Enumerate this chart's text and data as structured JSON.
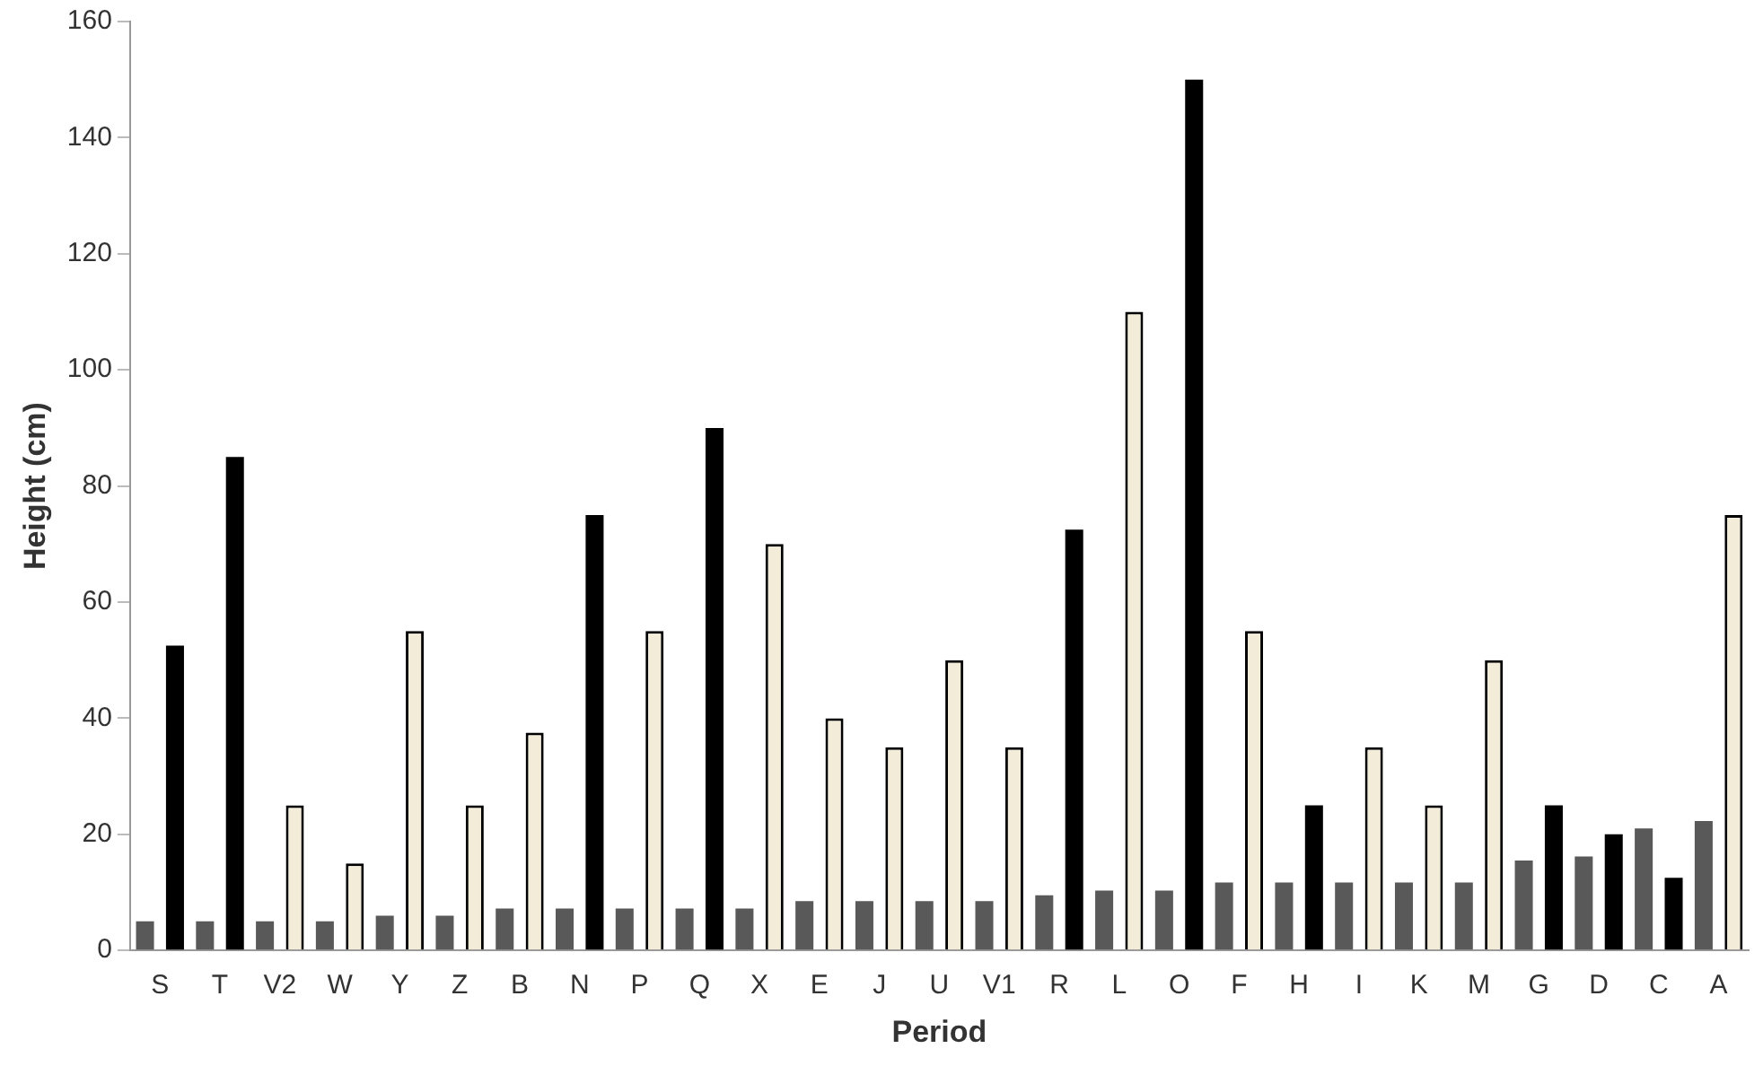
{
  "chart_data": {
    "type": "bar",
    "xlabel": "Period",
    "ylabel": "Height (cm)",
    "categories": [
      "S",
      "T",
      "V2",
      "W",
      "Y",
      "Z",
      "B",
      "N",
      "P",
      "Q",
      "X",
      "E",
      "J",
      "U",
      "V1",
      "R",
      "L",
      "O",
      "F",
      "H",
      "I",
      "K",
      "M",
      "G",
      "D",
      "C",
      "A"
    ],
    "series": [
      {
        "color": "#595959",
        "values": [
          5,
          5,
          5,
          5,
          6,
          6,
          7.2,
          7.2,
          7.2,
          7.2,
          7.2,
          8.5,
          8.5,
          8.5,
          8.5,
          9.5,
          10.3,
          10.3,
          11.7,
          11.7,
          11.7,
          11.7,
          11.7,
          15.5,
          16.2,
          21,
          22.3
        ]
      },
      {
        "colors": [
          "#000000",
          "#000000",
          "#f3ecd8",
          "#f3ecd8",
          "#f3ecd8",
          "#f3ecd8",
          "#f3ecd8",
          "#000000",
          "#f3ecd8",
          "#000000",
          "#f3ecd8",
          "#f3ecd8",
          "#f3ecd8",
          "#f3ecd8",
          "#f3ecd8",
          "#000000",
          "#f3ecd8",
          "#000000",
          "#f3ecd8",
          "#000000",
          "#f3ecd8",
          "#f3ecd8",
          "#f3ecd8",
          "#000000",
          "#000000",
          "#000000",
          "#f3ecd8"
        ],
        "values": [
          52.5,
          85,
          25,
          15,
          55,
          25,
          37.5,
          75,
          55,
          90,
          70,
          40,
          35,
          50,
          35,
          72.5,
          110,
          150,
          55,
          25,
          35,
          25,
          50,
          25,
          20,
          12.5,
          75
        ]
      }
    ],
    "ylim": [
      0,
      160
    ],
    "yticks": [
      0,
      20,
      40,
      60,
      80,
      100,
      120,
      140,
      160
    ],
    "grid": false,
    "legend": false
  }
}
